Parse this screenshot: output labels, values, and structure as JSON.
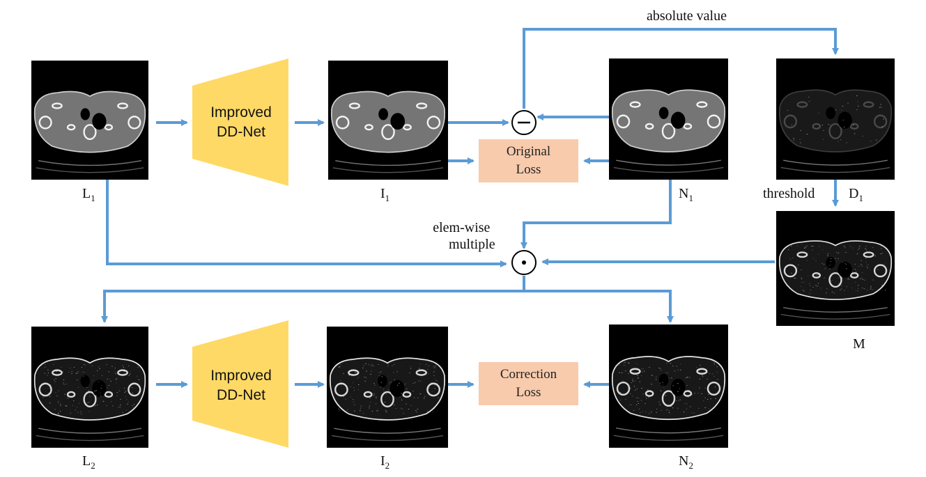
{
  "colors": {
    "arrow": "#5b9bd5",
    "network": "#ffd966",
    "loss_box": "#f8cbad",
    "background": "#ffffff",
    "image_bg": "#000000"
  },
  "network": {
    "line1": "Improved",
    "line2": "DD-Net"
  },
  "loss": {
    "original": {
      "line1": "Original",
      "line2": "Loss"
    },
    "correction": {
      "line1": "Correction",
      "line2": "Loss"
    }
  },
  "operators": {
    "subtract": "−",
    "multiply": "•"
  },
  "annotations": {
    "absolute_value": "absolute value",
    "threshold": "threshold",
    "elem_wise_line1": "elem-wise",
    "elem_wise_line2": "multiple"
  },
  "images": {
    "L1": {
      "base": "L",
      "sub": "1",
      "style": "full-dose-like"
    },
    "I1": {
      "base": "I",
      "sub": "1",
      "style": "full-dose-like"
    },
    "N1": {
      "base": "N",
      "sub": "1",
      "style": "full-dose-like"
    },
    "D1": {
      "base": "D",
      "sub": "1",
      "style": "faint-difference"
    },
    "M": {
      "base": "M",
      "sub": "",
      "style": "edge-mask"
    },
    "L2": {
      "base": "L",
      "sub": "2",
      "style": "edge-mask"
    },
    "I2": {
      "base": "I",
      "sub": "2",
      "style": "edge-mask"
    },
    "N2": {
      "base": "N",
      "sub": "2",
      "style": "edge-mask"
    }
  }
}
